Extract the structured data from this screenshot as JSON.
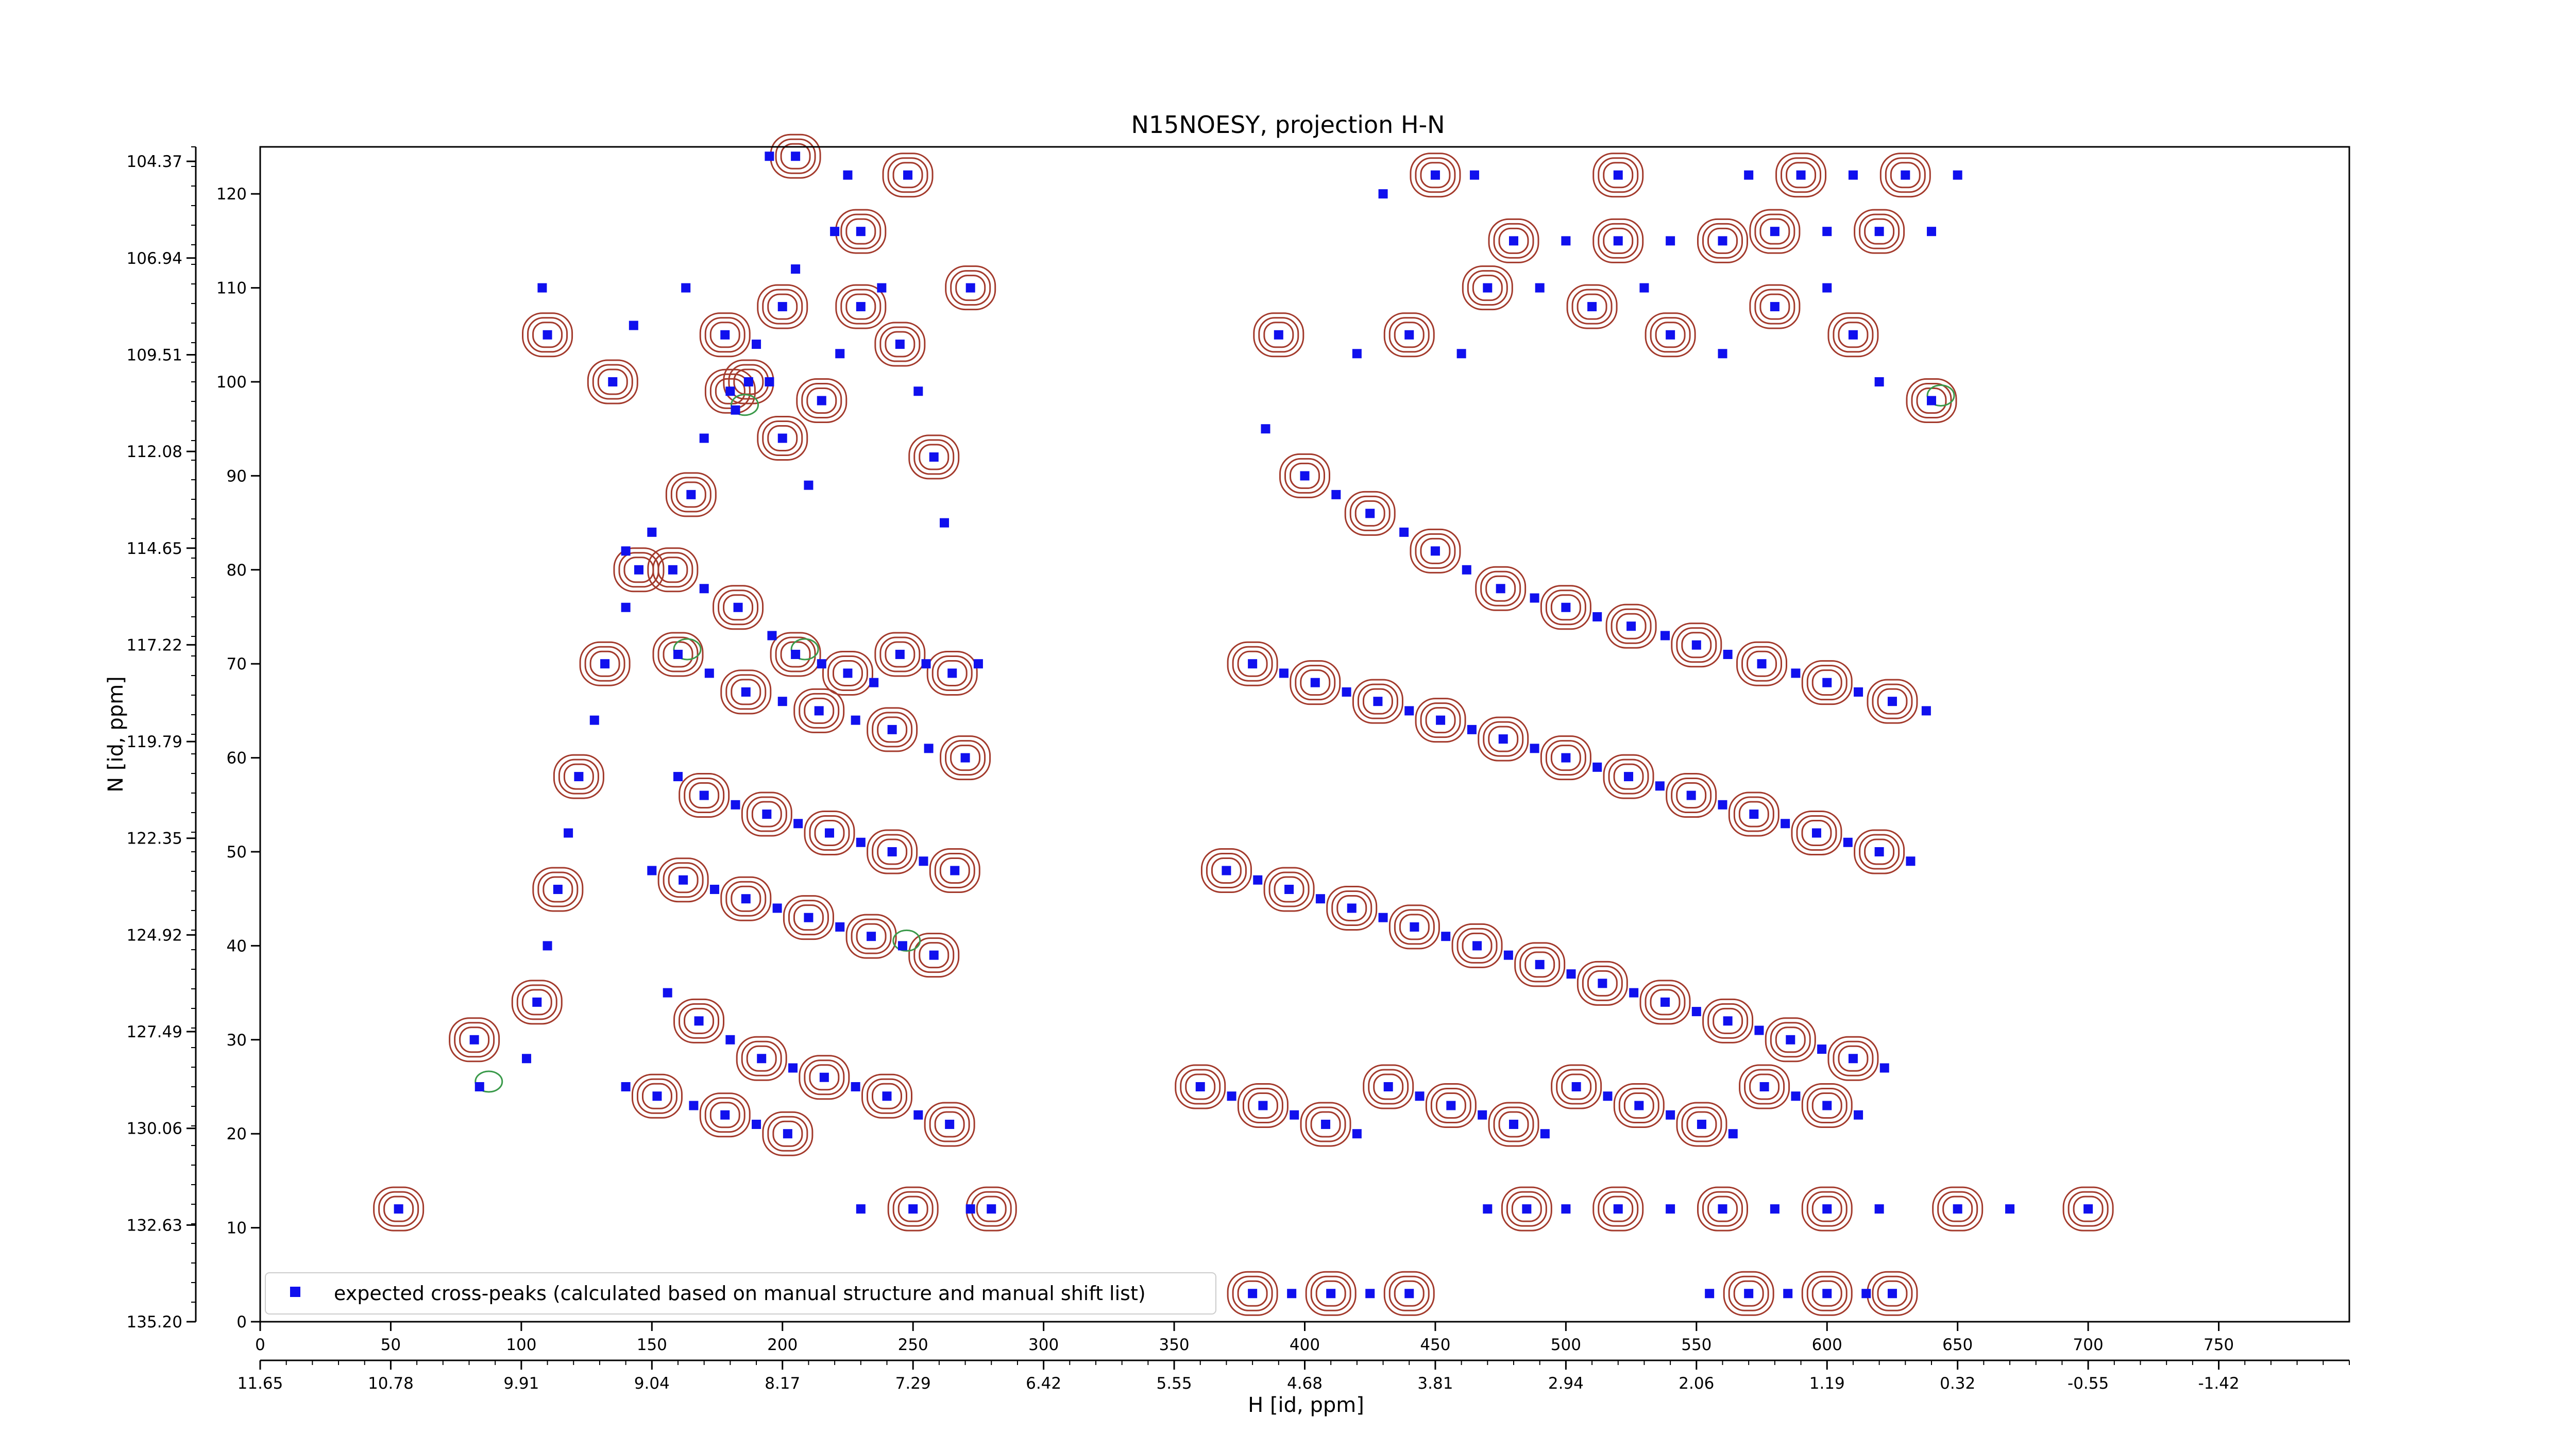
{
  "colors": {
    "marker": "#1010ee",
    "contour_positive": "#a33a2c",
    "contour_negative": "#3a9a4a"
  },
  "chart_data": {
    "type": "scatter",
    "title": "N15NOESY, projection H-N",
    "xlabel": "H [id, ppm]",
    "ylabel": "N [id, ppm]",
    "xlim": [
      0,
      800
    ],
    "ylim": [
      0,
      125
    ],
    "grid": false,
    "legend": {
      "placement": "lower-left",
      "entries": [
        "expected cross-peaks (calculated based on manual structure and manual shift list)"
      ]
    },
    "x_ticks": [
      0,
      50,
      100,
      150,
      200,
      250,
      300,
      350,
      400,
      450,
      500,
      550,
      600,
      650,
      700,
      750
    ],
    "y_ticks": [
      0,
      10,
      20,
      30,
      40,
      50,
      60,
      70,
      80,
      90,
      100,
      110,
      120
    ],
    "secondary_x_ticks": [
      "11.65",
      "10.78",
      "9.91",
      "9.04",
      "8.17",
      "7.29",
      "6.42",
      "5.55",
      "4.68",
      "3.81",
      "2.94",
      "2.06",
      "1.19",
      "0.32",
      "-0.55",
      "-1.42"
    ],
    "secondary_y_ticks": [
      "135.20",
      "132.63",
      "130.06",
      "127.49",
      "124.92",
      "122.35",
      "119.79",
      "117.22",
      "114.65",
      "112.08",
      "109.51",
      "106.94",
      "104.37"
    ],
    "series": [
      {
        "name": "expected cross-peaks (calculated based on manual structure and manual shift list)",
        "points": [
          [
            53,
            12
          ],
          [
            84,
            25
          ],
          [
            82,
            30
          ],
          [
            108,
            110
          ],
          [
            110,
            105
          ],
          [
            143,
            106
          ],
          [
            135,
            100
          ],
          [
            163,
            110
          ],
          [
            178,
            105
          ],
          [
            182,
            97
          ],
          [
            187,
            100
          ],
          [
            195,
            100
          ],
          [
            200,
            94
          ],
          [
            210,
            89
          ],
          [
            215,
            98
          ],
          [
            222,
            103
          ],
          [
            230,
            108
          ],
          [
            238,
            110
          ],
          [
            245,
            104
          ],
          [
            252,
            99
          ],
          [
            258,
            92
          ],
          [
            262,
            85
          ],
          [
            272,
            110
          ],
          [
            140,
            82
          ],
          [
            158,
            80
          ],
          [
            170,
            78
          ],
          [
            183,
            76
          ],
          [
            196,
            73
          ],
          [
            205,
            71
          ],
          [
            215,
            70
          ],
          [
            225,
            69
          ],
          [
            235,
            68
          ],
          [
            245,
            71
          ],
          [
            255,
            70
          ],
          [
            265,
            69
          ],
          [
            275,
            70
          ],
          [
            160,
            71
          ],
          [
            172,
            69
          ],
          [
            186,
            67
          ],
          [
            200,
            66
          ],
          [
            214,
            65
          ],
          [
            228,
            64
          ],
          [
            242,
            63
          ],
          [
            256,
            61
          ],
          [
            270,
            60
          ],
          [
            160,
            58
          ],
          [
            170,
            56
          ],
          [
            182,
            55
          ],
          [
            194,
            54
          ],
          [
            206,
            53
          ],
          [
            218,
            52
          ],
          [
            230,
            51
          ],
          [
            242,
            50
          ],
          [
            254,
            49
          ],
          [
            266,
            48
          ],
          [
            150,
            48
          ],
          [
            162,
            47
          ],
          [
            174,
            46
          ],
          [
            186,
            45
          ],
          [
            198,
            44
          ],
          [
            210,
            43
          ],
          [
            222,
            42
          ],
          [
            234,
            41
          ],
          [
            246,
            40
          ],
          [
            258,
            39
          ],
          [
            156,
            35
          ],
          [
            168,
            32
          ],
          [
            180,
            30
          ],
          [
            192,
            28
          ],
          [
            204,
            27
          ],
          [
            216,
            26
          ],
          [
            228,
            25
          ],
          [
            240,
            24
          ],
          [
            252,
            22
          ],
          [
            264,
            21
          ],
          [
            140,
            25
          ],
          [
            152,
            24
          ],
          [
            166,
            23
          ],
          [
            178,
            22
          ],
          [
            190,
            21
          ],
          [
            202,
            20
          ],
          [
            230,
            12
          ],
          [
            250,
            12
          ],
          [
            272,
            12
          ],
          [
            280,
            12
          ],
          [
            195,
            124
          ],
          [
            205,
            124
          ],
          [
            225,
            122
          ],
          [
            248,
            122
          ],
          [
            220,
            116
          ],
          [
            230,
            116
          ],
          [
            205,
            112
          ],
          [
            200,
            108
          ],
          [
            190,
            104
          ],
          [
            180,
            99
          ],
          [
            170,
            94
          ],
          [
            165,
            88
          ],
          [
            150,
            84
          ],
          [
            145,
            80
          ],
          [
            140,
            76
          ],
          [
            132,
            70
          ],
          [
            128,
            64
          ],
          [
            122,
            58
          ],
          [
            118,
            52
          ],
          [
            114,
            46
          ],
          [
            110,
            40
          ],
          [
            106,
            34
          ],
          [
            102,
            28
          ],
          [
            390,
            105
          ],
          [
            420,
            103
          ],
          [
            440,
            105
          ],
          [
            460,
            103
          ],
          [
            470,
            110
          ],
          [
            490,
            110
          ],
          [
            510,
            108
          ],
          [
            530,
            110
          ],
          [
            540,
            105
          ],
          [
            560,
            103
          ],
          [
            580,
            108
          ],
          [
            600,
            110
          ],
          [
            610,
            105
          ],
          [
            620,
            100
          ],
          [
            640,
            98
          ],
          [
            385,
            95
          ],
          [
            400,
            90
          ],
          [
            412,
            88
          ],
          [
            425,
            86
          ],
          [
            438,
            84
          ],
          [
            450,
            82
          ],
          [
            462,
            80
          ],
          [
            475,
            78
          ],
          [
            488,
            77
          ],
          [
            500,
            76
          ],
          [
            512,
            75
          ],
          [
            525,
            74
          ],
          [
            538,
            73
          ],
          [
            550,
            72
          ],
          [
            562,
            71
          ],
          [
            575,
            70
          ],
          [
            588,
            69
          ],
          [
            600,
            68
          ],
          [
            612,
            67
          ],
          [
            625,
            66
          ],
          [
            638,
            65
          ],
          [
            380,
            70
          ],
          [
            392,
            69
          ],
          [
            404,
            68
          ],
          [
            416,
            67
          ],
          [
            428,
            66
          ],
          [
            440,
            65
          ],
          [
            452,
            64
          ],
          [
            464,
            63
          ],
          [
            476,
            62
          ],
          [
            488,
            61
          ],
          [
            500,
            60
          ],
          [
            512,
            59
          ],
          [
            524,
            58
          ],
          [
            536,
            57
          ],
          [
            548,
            56
          ],
          [
            560,
            55
          ],
          [
            572,
            54
          ],
          [
            584,
            53
          ],
          [
            596,
            52
          ],
          [
            608,
            51
          ],
          [
            620,
            50
          ],
          [
            632,
            49
          ],
          [
            370,
            48
          ],
          [
            382,
            47
          ],
          [
            394,
            46
          ],
          [
            406,
            45
          ],
          [
            418,
            44
          ],
          [
            430,
            43
          ],
          [
            442,
            42
          ],
          [
            454,
            41
          ],
          [
            466,
            40
          ],
          [
            478,
            39
          ],
          [
            490,
            38
          ],
          [
            502,
            37
          ],
          [
            514,
            36
          ],
          [
            526,
            35
          ],
          [
            538,
            34
          ],
          [
            550,
            33
          ],
          [
            562,
            32
          ],
          [
            574,
            31
          ],
          [
            586,
            30
          ],
          [
            598,
            29
          ],
          [
            610,
            28
          ],
          [
            622,
            27
          ],
          [
            360,
            25
          ],
          [
            372,
            24
          ],
          [
            384,
            23
          ],
          [
            396,
            22
          ],
          [
            408,
            21
          ],
          [
            420,
            20
          ],
          [
            432,
            25
          ],
          [
            444,
            24
          ],
          [
            456,
            23
          ],
          [
            468,
            22
          ],
          [
            480,
            21
          ],
          [
            492,
            20
          ],
          [
            504,
            25
          ],
          [
            516,
            24
          ],
          [
            528,
            23
          ],
          [
            540,
            22
          ],
          [
            552,
            21
          ],
          [
            564,
            20
          ],
          [
            576,
            25
          ],
          [
            588,
            24
          ],
          [
            600,
            23
          ],
          [
            612,
            22
          ],
          [
            380,
            3
          ],
          [
            395,
            3
          ],
          [
            410,
            3
          ],
          [
            425,
            3
          ],
          [
            440,
            3
          ],
          [
            555,
            3
          ],
          [
            570,
            3
          ],
          [
            585,
            3
          ],
          [
            600,
            3
          ],
          [
            615,
            3
          ],
          [
            625,
            3
          ],
          [
            470,
            12
          ],
          [
            485,
            12
          ],
          [
            500,
            12
          ],
          [
            520,
            12
          ],
          [
            540,
            12
          ],
          [
            560,
            12
          ],
          [
            580,
            12
          ],
          [
            600,
            12
          ],
          [
            620,
            12
          ],
          [
            650,
            12
          ],
          [
            670,
            12
          ],
          [
            700,
            12
          ],
          [
            430,
            120
          ],
          [
            450,
            122
          ],
          [
            465,
            122
          ],
          [
            520,
            122
          ],
          [
            570,
            122
          ],
          [
            590,
            122
          ],
          [
            610,
            122
          ],
          [
            630,
            122
          ],
          [
            650,
            122
          ],
          [
            580,
            116
          ],
          [
            600,
            116
          ],
          [
            620,
            116
          ],
          [
            640,
            116
          ],
          [
            560,
            115
          ],
          [
            540,
            115
          ],
          [
            520,
            115
          ],
          [
            500,
            115
          ],
          [
            480,
            115
          ]
        ]
      }
    ]
  }
}
